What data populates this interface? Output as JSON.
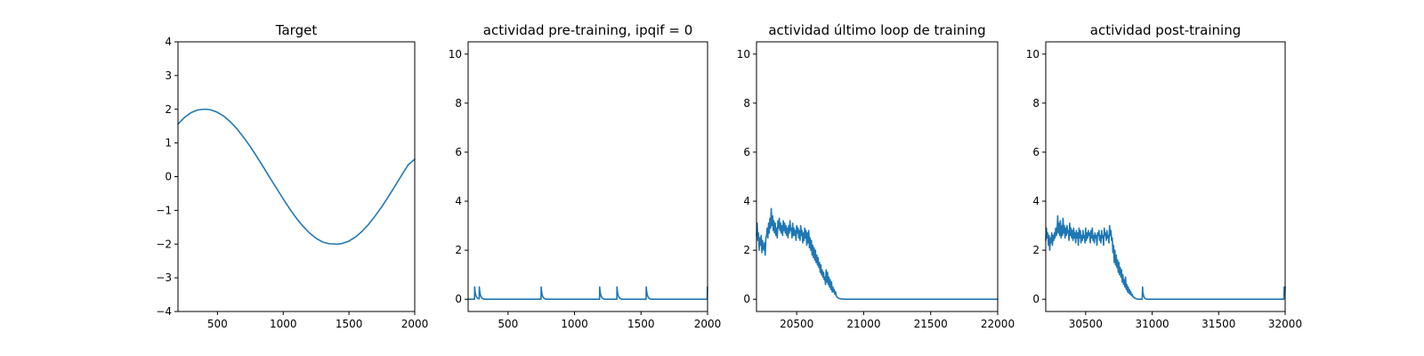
{
  "chart_data": [
    {
      "type": "line",
      "title": "Target",
      "xlim": [
        200,
        2000
      ],
      "ylim": [
        -4,
        4
      ],
      "xticks": [
        500,
        1000,
        1500,
        2000
      ],
      "yticks": [
        -4,
        -3,
        -2,
        -1,
        0,
        1,
        2,
        3,
        4
      ],
      "xtick_labels": [
        "500",
        "1000",
        "1500",
        "2000"
      ],
      "ytick_labels": [
        "−4",
        "−3",
        "−2",
        "−1",
        "0",
        "1",
        "2",
        "3",
        "4"
      ],
      "series": [
        {
          "color": "#1f77b4",
          "x": [
            200,
            250,
            300,
            350,
            400,
            415,
            450,
            500,
            550,
            600,
            650,
            700,
            750,
            800,
            850,
            900,
            950,
            1000,
            1050,
            1100,
            1150,
            1200,
            1250,
            1300,
            1350,
            1400,
            1415,
            1450,
            1500,
            1550,
            1600,
            1650,
            1700,
            1750,
            1800,
            1850,
            1900,
            1950,
            2000
          ],
          "y": [
            1.56,
            1.76,
            1.9,
            1.98,
            2.0,
            2.0,
            1.98,
            1.91,
            1.79,
            1.62,
            1.41,
            1.16,
            0.89,
            0.59,
            0.28,
            -0.04,
            -0.35,
            -0.66,
            -0.96,
            -1.23,
            -1.47,
            -1.67,
            -1.83,
            -1.94,
            -1.99,
            -2.0,
            -2.0,
            -1.98,
            -1.91,
            -1.79,
            -1.62,
            -1.41,
            -1.16,
            -0.89,
            -0.59,
            -0.28,
            0.04,
            0.35,
            0.52
          ]
        }
      ]
    },
    {
      "type": "line",
      "title": "actividad pre-training, ipqif = 0",
      "xlim": [
        200,
        2000
      ],
      "ylim": [
        -0.5,
        10.5
      ],
      "xticks": [
        500,
        1000,
        1500,
        2000
      ],
      "yticks": [
        0,
        2,
        4,
        6,
        8,
        10
      ],
      "xtick_labels": [
        "500",
        "1000",
        "1500",
        "2000"
      ],
      "ytick_labels": [
        "0",
        "2",
        "4",
        "6",
        "8",
        "10"
      ],
      "series": [
        {
          "color": "#1f77b4",
          "x": [
            200,
            248,
            249,
            252,
            256,
            262,
            270,
            280,
            283,
            284,
            287,
            291,
            297,
            305,
            320,
            748,
            749,
            752,
            756,
            762,
            770,
            785,
            1188,
            1189,
            1192,
            1196,
            1202,
            1210,
            1225,
            1318,
            1319,
            1322,
            1326,
            1332,
            1340,
            1355,
            1538,
            1539,
            1542,
            1546,
            1552,
            1560,
            1575,
            1998,
            1999,
            2000
          ],
          "y": [
            0,
            0,
            0.5,
            0.33,
            0.2,
            0.1,
            0.04,
            0.02,
            0.02,
            0.5,
            0.33,
            0.2,
            0.1,
            0.04,
            0,
            0,
            0.5,
            0.33,
            0.2,
            0.1,
            0.04,
            0,
            0,
            0.5,
            0.33,
            0.2,
            0.1,
            0.04,
            0,
            0,
            0.5,
            0.33,
            0.2,
            0.1,
            0.04,
            0,
            0,
            0.5,
            0.33,
            0.2,
            0.1,
            0.04,
            0,
            0,
            0.5,
            0.45
          ]
        }
      ]
    },
    {
      "type": "line",
      "title": "actividad último loop de training",
      "xlim": [
        20200,
        22000
      ],
      "ylim": [
        -0.5,
        10.5
      ],
      "xticks": [
        20500,
        21000,
        21500,
        22000
      ],
      "yticks": [
        0,
        2,
        4,
        6,
        8,
        10
      ],
      "xtick_labels": [
        "20500",
        "21000",
        "21500",
        "22000"
      ],
      "ytick_labels": [
        "0",
        "2",
        "4",
        "6",
        "8",
        "10"
      ],
      "series": [
        {
          "color": "#1f77b4",
          "x": [
            20200,
            20205,
            20210,
            20215,
            20220,
            20225,
            20230,
            20235,
            20240,
            20245,
            20250,
            20255,
            20260,
            20265,
            20270,
            20275,
            20280,
            20285,
            20290,
            20295,
            20300,
            20305,
            20310,
            20315,
            20320,
            20325,
            20330,
            20335,
            20340,
            20345,
            20350,
            20355,
            20360,
            20365,
            20370,
            20375,
            20380,
            20385,
            20390,
            20395,
            20400,
            20405,
            20410,
            20415,
            20420,
            20425,
            20430,
            20435,
            20440,
            20445,
            20450,
            20455,
            20460,
            20465,
            20470,
            20475,
            20480,
            20485,
            20490,
            20495,
            20500,
            20505,
            20510,
            20515,
            20520,
            20525,
            20530,
            20535,
            20540,
            20545,
            20550,
            20555,
            20560,
            20565,
            20570,
            20575,
            20580,
            20585,
            20590,
            20595,
            20600,
            20605,
            20610,
            20615,
            20620,
            20625,
            20630,
            20635,
            20640,
            20645,
            20650,
            20655,
            20660,
            20665,
            20670,
            20675,
            20680,
            20685,
            20690,
            20695,
            20700,
            20705,
            20710,
            20715,
            20720,
            20725,
            20730,
            20735,
            20740,
            20745,
            20750,
            20755,
            20760,
            20765,
            20770,
            20775,
            20780,
            20785,
            20790,
            20795,
            20800,
            20805,
            20810,
            20815,
            20820,
            20825,
            20830,
            20835,
            20840,
            20845,
            20850,
            20855,
            20860,
            20870,
            20880,
            20900,
            21000,
            22000
          ],
          "y": [
            2.6,
            3.1,
            2.4,
            2.7,
            2.0,
            2.5,
            2.2,
            2.6,
            1.9,
            2.4,
            2.1,
            2.0,
            2.3,
            1.8,
            2.5,
            2.6,
            2.9,
            2.5,
            3.1,
            2.7,
            3.3,
            2.9,
            3.7,
            3.0,
            3.4,
            2.8,
            3.2,
            2.7,
            3.1,
            2.6,
            2.9,
            2.5,
            3.2,
            2.9,
            3.3,
            2.8,
            3.1,
            2.7,
            3.0,
            2.6,
            3.2,
            2.8,
            3.1,
            2.7,
            3.0,
            2.6,
            2.9,
            2.5,
            3.0,
            2.7,
            3.2,
            2.8,
            2.9,
            2.5,
            3.1,
            2.6,
            2.9,
            2.6,
            2.8,
            2.4,
            3.0,
            2.7,
            2.9,
            2.5,
            2.8,
            2.4,
            3.0,
            2.6,
            2.8,
            2.3,
            2.7,
            2.4,
            2.9,
            2.5,
            2.8,
            2.2,
            2.7,
            2.3,
            2.8,
            2.1,
            2.5,
            2.0,
            2.4,
            1.8,
            2.2,
            1.7,
            2.1,
            1.6,
            2.0,
            1.5,
            1.8,
            1.4,
            1.7,
            1.3,
            1.5,
            1.1,
            1.4,
            1.0,
            1.2,
            0.9,
            1.1,
            0.8,
            0.9,
            0.6,
            1.2,
            0.7,
            1.1,
            0.6,
            0.9,
            0.5,
            0.8,
            0.4,
            0.7,
            0.3,
            0.5,
            0.3,
            0.4,
            0.2,
            0.3,
            0.15,
            0.1,
            0.08,
            0.05,
            0.04,
            0.03,
            0.02,
            0.02,
            0.01,
            0.01,
            0.005,
            0.005,
            0,
            0,
            0,
            0,
            0,
            0,
            0
          ]
        }
      ]
    },
    {
      "type": "line",
      "title": "actividad post-training",
      "xlim": [
        30200,
        32000
      ],
      "ylim": [
        -0.5,
        10.5
      ],
      "xticks": [
        30500,
        31000,
        31500,
        32000
      ],
      "yticks": [
        0,
        2,
        4,
        6,
        8,
        10
      ],
      "xtick_labels": [
        "30500",
        "31000",
        "31500",
        "32000"
      ],
      "ytick_labels": [
        "0",
        "2",
        "4",
        "6",
        "8",
        "10"
      ],
      "series": [
        {
          "color": "#1f77b4",
          "x": [
            30200,
            30205,
            30210,
            30215,
            30220,
            30225,
            30230,
            30235,
            30240,
            30245,
            30250,
            30255,
            30260,
            30265,
            30270,
            30275,
            30280,
            30285,
            30290,
            30295,
            30300,
            30305,
            30310,
            30315,
            30320,
            30325,
            30330,
            30335,
            30340,
            30345,
            30350,
            30355,
            30360,
            30365,
            30370,
            30375,
            30380,
            30385,
            30390,
            30395,
            30400,
            30405,
            30410,
            30415,
            30420,
            30425,
            30430,
            30435,
            30440,
            30445,
            30450,
            30455,
            30460,
            30465,
            30470,
            30475,
            30480,
            30485,
            30490,
            30495,
            30500,
            30505,
            30510,
            30515,
            30520,
            30525,
            30530,
            30535,
            30540,
            30545,
            30550,
            30555,
            30560,
            30565,
            30570,
            30575,
            30580,
            30585,
            30590,
            30595,
            30600,
            30605,
            30610,
            30615,
            30620,
            30625,
            30630,
            30635,
            30640,
            30645,
            30650,
            30655,
            30660,
            30665,
            30670,
            30675,
            30680,
            30685,
            30690,
            30695,
            30700,
            30705,
            30710,
            30715,
            30720,
            30725,
            30730,
            30735,
            30740,
            30745,
            30750,
            30755,
            30760,
            30765,
            30770,
            30775,
            30780,
            30785,
            30790,
            30795,
            30800,
            30805,
            30810,
            30815,
            30820,
            30825,
            30830,
            30835,
            30840,
            30845,
            30850,
            30855,
            30860,
            30865,
            30870,
            30875,
            30880,
            30885,
            30890,
            30895,
            30900,
            30910,
            30920,
            30925,
            30928,
            30930,
            30935,
            30940,
            30945,
            30950,
            30960,
            30980,
            31000,
            31200,
            31400,
            31600,
            31800,
            31990,
            31993,
            31996,
            31998,
            32000
          ],
          "y": [
            2.4,
            2.9,
            2.5,
            2.7,
            2.2,
            2.6,
            2.0,
            2.5,
            2.3,
            2.7,
            2.2,
            2.6,
            2.4,
            2.7,
            2.5,
            2.9,
            2.6,
            2.8,
            3.4,
            2.7,
            3.1,
            2.6,
            3.2,
            2.5,
            3.0,
            2.6,
            3.3,
            2.7,
            3.0,
            2.5,
            2.9,
            2.6,
            3.0,
            2.7,
            2.8,
            2.4,
            3.1,
            2.6,
            2.9,
            2.5,
            2.8,
            2.4,
            2.9,
            2.5,
            2.7,
            2.3,
            2.8,
            2.5,
            2.7,
            2.2,
            2.9,
            2.5,
            2.8,
            2.3,
            2.6,
            2.4,
            2.8,
            2.5,
            2.6,
            2.3,
            2.9,
            2.4,
            2.7,
            2.5,
            2.8,
            2.6,
            2.7,
            2.3,
            2.8,
            2.5,
            2.9,
            2.4,
            2.6,
            2.3,
            2.7,
            2.5,
            2.6,
            2.2,
            2.7,
            2.6,
            2.8,
            2.4,
            2.6,
            2.3,
            2.8,
            2.5,
            2.6,
            2.2,
            2.9,
            2.6,
            2.7,
            2.4,
            2.8,
            2.5,
            2.6,
            2.3,
            3.0,
            2.6,
            2.8,
            2.4,
            2.5,
            1.9,
            2.2,
            1.5,
            2.0,
            1.4,
            1.8,
            1.3,
            1.6,
            1.1,
            1.5,
            1.0,
            1.3,
            0.9,
            1.2,
            0.7,
            1.0,
            0.6,
            0.8,
            0.5,
            0.9,
            0.4,
            0.6,
            0.3,
            0.5,
            0.25,
            0.4,
            0.2,
            0.3,
            0.15,
            0.2,
            0.1,
            0.1,
            0.05,
            0.05,
            0.03,
            0.02,
            0.01,
            0.01,
            0,
            0,
            0,
            0,
            0,
            0.5,
            0.3,
            0.15,
            0.08,
            0.04,
            0.02,
            0,
            0,
            0,
            0,
            0,
            0,
            0,
            0,
            0.5,
            0.3,
            0.25,
            0.5
          ]
        }
      ]
    }
  ]
}
